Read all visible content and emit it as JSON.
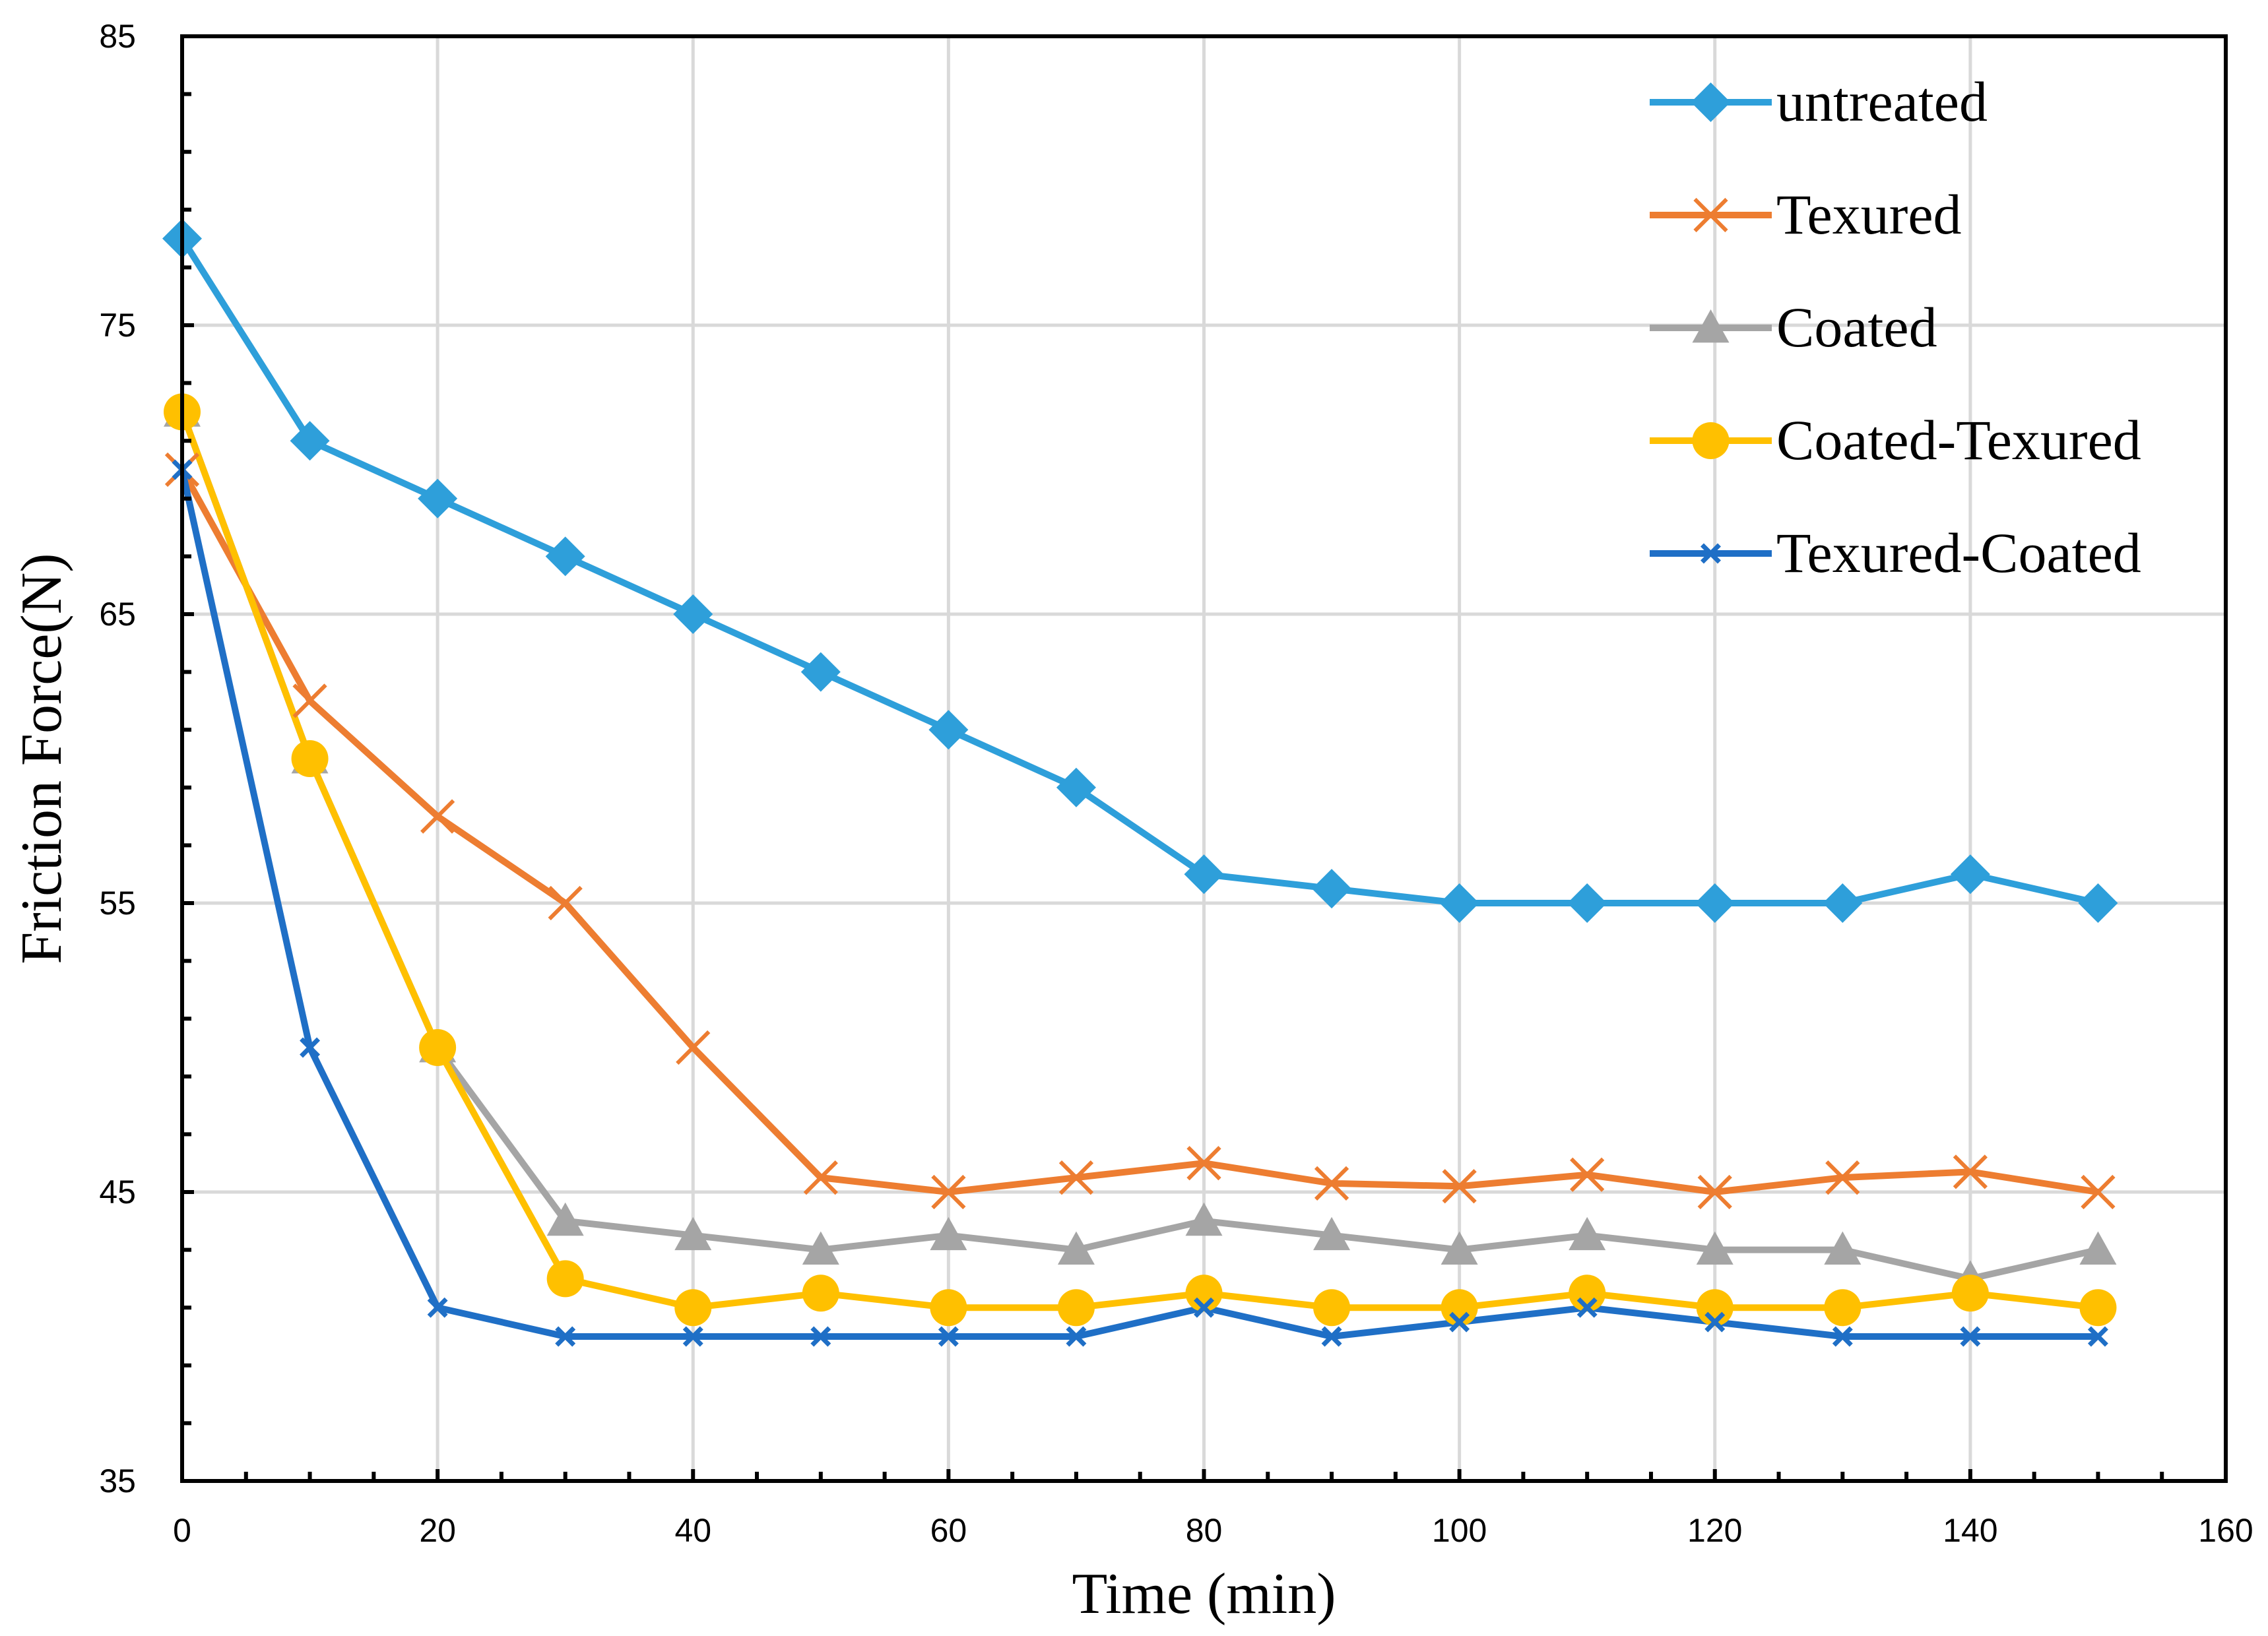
{
  "chart_data": {
    "type": "line",
    "title": "",
    "xlabel": "Time (min)",
    "ylabel": "Friction Force(N)",
    "xlim": [
      0,
      160
    ],
    "ylim": [
      35,
      85
    ],
    "x_ticks": [
      0,
      20,
      40,
      60,
      80,
      100,
      120,
      140,
      160
    ],
    "x_tick_labels": [
      "0",
      "20",
      "40",
      "60",
      "80",
      "100",
      "120",
      "140",
      "160"
    ],
    "y_ticks": [
      35,
      45,
      55,
      65,
      75,
      85
    ],
    "y_tick_labels": [
      "35",
      "45",
      "55",
      "65",
      "75",
      "85"
    ],
    "grid": true,
    "legend_position": "top-right",
    "x": [
      0,
      10,
      20,
      30,
      40,
      50,
      60,
      70,
      80,
      90,
      100,
      110,
      120,
      130,
      140,
      150
    ],
    "series": [
      {
        "name": "untreated",
        "color": "#2E9FDA",
        "marker": "diamond",
        "values": [
          78,
          71,
          69,
          67,
          65,
          63,
          61,
          59,
          56,
          55.5,
          55,
          55,
          55,
          55,
          56,
          55
        ]
      },
      {
        "name": "Texured",
        "color": "#ED7D31",
        "marker": "x",
        "values": [
          70,
          62,
          58,
          55,
          50,
          45.5,
          45,
          45.5,
          46,
          45.3,
          45.2,
          45.6,
          45,
          45.5,
          45.7,
          45
        ]
      },
      {
        "name": "Coated",
        "color": "#A5A5A5",
        "marker": "triangle",
        "values": [
          72,
          60,
          50,
          44,
          43.5,
          43,
          43.5,
          43,
          44,
          43.5,
          43,
          43.5,
          43,
          43,
          42,
          43
        ]
      },
      {
        "name": "Coated-Texured",
        "color": "#FFC000",
        "marker": "circle",
        "values": [
          72,
          60,
          50,
          42,
          41,
          41.5,
          41,
          41,
          41.5,
          41,
          41,
          41.5,
          41,
          41,
          41.5,
          41
        ]
      },
      {
        "name": "Texured-Coated",
        "color": "#1F6FC6",
        "marker": "smallx",
        "values": [
          70,
          50,
          41,
          40,
          40,
          40,
          40,
          40,
          41,
          40,
          40.5,
          41,
          40.5,
          40,
          40,
          40
        ]
      }
    ]
  }
}
